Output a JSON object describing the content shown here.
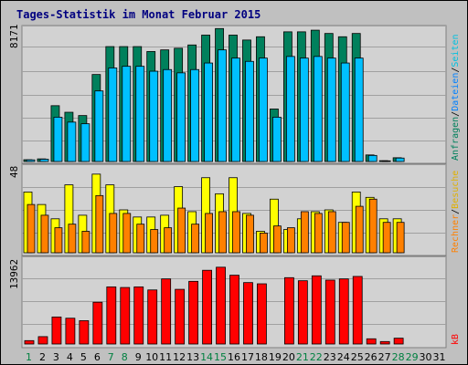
{
  "title": "Tages-Statistik im Monat Februar 2015",
  "colors": {
    "background": "#c0c0c0",
    "panel": "#d2d2d2",
    "title": "#000080",
    "anfragen": "#00805c",
    "dateien": "#00c0ff",
    "seiten": "#00e0e0",
    "besuche": "#ffff00",
    "rechner": "#ff8000",
    "kb": "#ff0000",
    "weekend_label": "#008040",
    "weekday_label": "#000000"
  },
  "chart_data": [
    {
      "type": "bar",
      "panel": "top",
      "categories": [
        "1",
        "2",
        "3",
        "4",
        "5",
        "6",
        "7",
        "8",
        "9",
        "10",
        "11",
        "12",
        "13",
        "14",
        "15",
        "16",
        "17",
        "18",
        "19",
        "20",
        "21",
        "22",
        "23",
        "24",
        "25",
        "26",
        "27",
        "28",
        "29",
        "30",
        "31"
      ],
      "ymax_label": "8171",
      "ylim": [
        0,
        8171
      ],
      "series": [
        {
          "name": "Anfragen",
          "values": [
            110,
            160,
            3400,
            3000,
            2800,
            5300,
            7000,
            7000,
            7000,
            6700,
            6800,
            6900,
            7100,
            7700,
            8100,
            7700,
            7400,
            7600,
            3200,
            7900,
            7900,
            8000,
            7800,
            7600,
            7800,
            400,
            50,
            230,
            0,
            0,
            0
          ]
        },
        {
          "name": "Dateien",
          "values": [
            100,
            140,
            2700,
            2400,
            2300,
            4300,
            5700,
            5800,
            5800,
            5500,
            5600,
            5400,
            5600,
            6000,
            6800,
            6300,
            6100,
            6300,
            2700,
            6400,
            6300,
            6400,
            6300,
            6000,
            6300,
            370,
            40,
            210,
            0,
            0,
            0
          ]
        },
        {
          "name": "Seiten",
          "values": [
            0,
            0,
            0,
            0,
            0,
            0,
            0,
            0,
            0,
            0,
            0,
            0,
            0,
            0,
            0,
            0,
            0,
            0,
            0,
            0,
            0,
            0,
            0,
            0,
            0,
            0,
            0,
            0,
            0,
            0,
            0
          ]
        }
      ]
    },
    {
      "type": "bar",
      "panel": "middle",
      "ymax_label": "48",
      "ylim": [
        0,
        48
      ],
      "series": [
        {
          "name": "Besuche",
          "values": [
            34,
            27,
            19,
            38,
            21,
            44,
            38,
            24,
            20,
            20,
            21,
            37,
            23,
            42,
            33,
            42,
            22,
            12,
            30,
            13,
            19,
            23,
            24,
            17,
            34,
            31,
            19,
            19,
            0,
            0,
            0
          ]
        },
        {
          "name": "Rechner",
          "values": [
            27,
            21,
            14,
            16,
            12,
            32,
            22,
            22,
            16,
            13,
            14,
            25,
            16,
            22,
            23,
            23,
            21,
            11,
            15,
            14,
            23,
            22,
            23,
            17,
            26,
            30,
            17,
            17,
            0,
            0,
            0
          ]
        }
      ]
    },
    {
      "type": "bar",
      "panel": "bottom",
      "ymax_label": "13962",
      "ylim": [
        0,
        13962
      ],
      "series": [
        {
          "name": "kB",
          "values": [
            550,
            1200,
            4400,
            4200,
            3800,
            6800,
            9300,
            9200,
            9300,
            8800,
            10600,
            8900,
            10200,
            12000,
            12500,
            11200,
            10000,
            9800,
            0,
            10800,
            10300,
            11100,
            10400,
            10600,
            11000,
            850,
            400,
            950,
            0,
            0,
            0
          ]
        }
      ]
    }
  ],
  "legend_right_top": [
    "Anfragen",
    "/",
    "Dateien",
    "/",
    "Seiten"
  ],
  "legend_right_middle": [
    "Rechner",
    "/",
    "Besuche"
  ],
  "legend_right_bottom": [
    "kB"
  ],
  "weekend_days": [
    "1",
    "7",
    "8",
    "14",
    "15",
    "21",
    "22",
    "28",
    "29"
  ]
}
